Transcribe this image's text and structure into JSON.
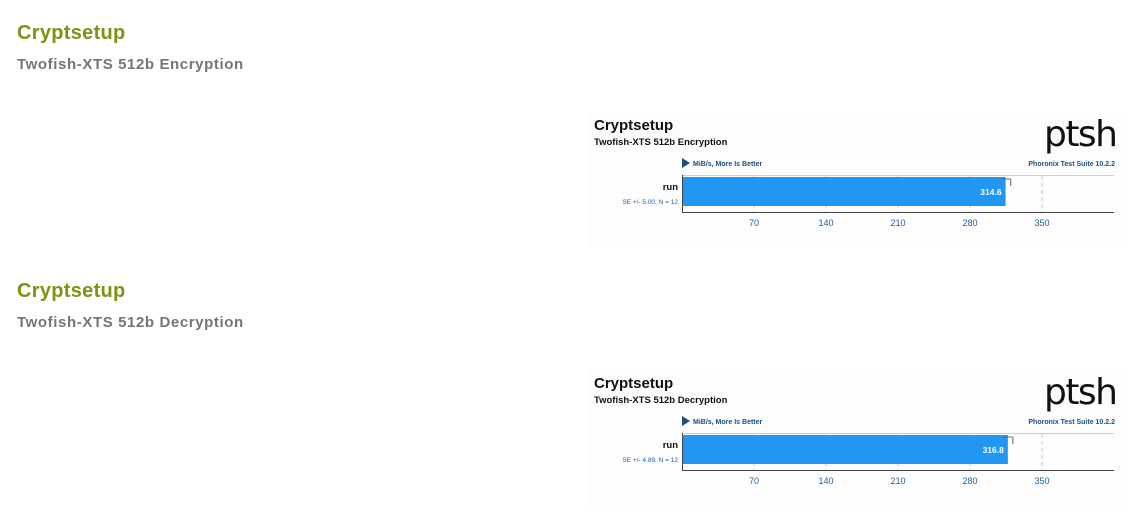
{
  "sections": [
    {
      "heading": "Cryptsetup",
      "subheading": "Twofish-XTS 512b Encryption"
    },
    {
      "heading": "Cryptsetup",
      "subheading": "Twofish-XTS 512b Decryption"
    }
  ],
  "colors": {
    "heading": "#7b9414",
    "subheading": "#757575",
    "bar": "#2196f3",
    "axis_text": "#1f5f9f",
    "chart_bg": "#fdfdfd"
  },
  "chart_data": [
    {
      "type": "bar",
      "orientation": "horizontal",
      "title": "Cryptsetup",
      "subtitle": "Twofish-XTS 512b Encryption",
      "metric_note": "MiB/s, More Is Better",
      "branding": "Phoronix Test Suite 10.2.2",
      "logo_text": "ptsh",
      "categories": [
        "run"
      ],
      "values": [
        314.6
      ],
      "value_labels": [
        "314.6"
      ],
      "errors": [
        5.0
      ],
      "stat_labels": [
        "SE +/- 5.00, N = 12"
      ],
      "xticks": [
        70,
        140,
        210,
        280,
        350
      ],
      "xlim": [
        0,
        420
      ],
      "grid": "vertical dashed",
      "legend": "none"
    },
    {
      "type": "bar",
      "orientation": "horizontal",
      "title": "Cryptsetup",
      "subtitle": "Twofish-XTS 512b Decryption",
      "metric_note": "MiB/s, More Is Better",
      "branding": "Phoronix Test Suite 10.2.2",
      "logo_text": "ptsh",
      "categories": [
        "run"
      ],
      "values": [
        316.8
      ],
      "value_labels": [
        "316.8"
      ],
      "errors": [
        4.89
      ],
      "stat_labels": [
        "SE +/- 4.89, N = 12"
      ],
      "xticks": [
        70,
        140,
        210,
        280,
        350
      ],
      "xlim": [
        0,
        420
      ],
      "grid": "vertical dashed",
      "legend": "none"
    }
  ]
}
